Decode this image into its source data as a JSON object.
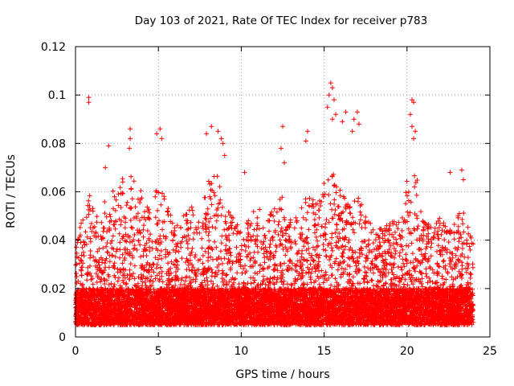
{
  "chart_data": {
    "type": "scatter",
    "title": "Day 103 of 2021, Rate Of TEC Index for receiver p783",
    "xlabel": "GPS time / hours",
    "ylabel": "ROTI / TECUs",
    "xlim": [
      0,
      25
    ],
    "ylim": [
      0,
      0.12
    ],
    "x_ticks": [
      0,
      5,
      10,
      15,
      20,
      25
    ],
    "x_tick_labels": [
      "0",
      "5",
      "10",
      "15",
      "20",
      "25"
    ],
    "y_ticks": [
      0,
      0.02,
      0.04,
      0.06,
      0.08,
      0.1,
      0.12
    ],
    "y_tick_labels": [
      "0",
      "0.02",
      "0.04",
      "0.06",
      "0.08",
      "0.1",
      "0.12"
    ],
    "grid": true,
    "marker": "plus",
    "color": "#ff0000",
    "density": {
      "x_start": 0,
      "x_end": 24,
      "baseline_min": 0.005,
      "baseline_max": 0.02,
      "samples_per_hour": 420,
      "envelope_hours": [
        0,
        0.5,
        1,
        1.5,
        2,
        2.5,
        3,
        3.5,
        4,
        4.5,
        5,
        5.5,
        6,
        6.5,
        7,
        7.5,
        8,
        8.5,
        9,
        9.5,
        10,
        10.5,
        11,
        11.5,
        12,
        12.5,
        13,
        13.5,
        14,
        14.5,
        15,
        15.5,
        16,
        16.5,
        17,
        17.5,
        18,
        18.5,
        19,
        19.5,
        20,
        20.5,
        21,
        21.5,
        22,
        22.5,
        23,
        23.5,
        24
      ],
      "envelope_values": [
        0.035,
        0.055,
        0.06,
        0.05,
        0.065,
        0.06,
        0.07,
        0.065,
        0.06,
        0.055,
        0.065,
        0.055,
        0.045,
        0.05,
        0.055,
        0.05,
        0.065,
        0.07,
        0.055,
        0.05,
        0.045,
        0.05,
        0.055,
        0.05,
        0.055,
        0.06,
        0.05,
        0.055,
        0.06,
        0.055,
        0.065,
        0.07,
        0.06,
        0.055,
        0.06,
        0.05,
        0.045,
        0.045,
        0.05,
        0.055,
        0.065,
        0.07,
        0.05,
        0.045,
        0.05,
        0.045,
        0.05,
        0.055,
        0.04
      ]
    },
    "outliers": [
      {
        "x": 0.8,
        "y": 0.099
      },
      {
        "x": 0.8,
        "y": 0.097
      },
      {
        "x": 3.3,
        "y": 0.086
      },
      {
        "x": 3.3,
        "y": 0.082
      },
      {
        "x": 3.25,
        "y": 0.078
      },
      {
        "x": 4.9,
        "y": 0.084
      },
      {
        "x": 5.1,
        "y": 0.086
      },
      {
        "x": 5.2,
        "y": 0.082
      },
      {
        "x": 7.9,
        "y": 0.084
      },
      {
        "x": 8.2,
        "y": 0.087
      },
      {
        "x": 8.6,
        "y": 0.085
      },
      {
        "x": 8.8,
        "y": 0.082
      },
      {
        "x": 8.9,
        "y": 0.08
      },
      {
        "x": 12.5,
        "y": 0.087
      },
      {
        "x": 12.4,
        "y": 0.078
      },
      {
        "x": 12.6,
        "y": 0.072
      },
      {
        "x": 14.0,
        "y": 0.085
      },
      {
        "x": 13.9,
        "y": 0.081
      },
      {
        "x": 15.4,
        "y": 0.105
      },
      {
        "x": 15.5,
        "y": 0.103
      },
      {
        "x": 15.3,
        "y": 0.1
      },
      {
        "x": 15.6,
        "y": 0.098
      },
      {
        "x": 15.2,
        "y": 0.095
      },
      {
        "x": 15.7,
        "y": 0.092
      },
      {
        "x": 15.5,
        "y": 0.09
      },
      {
        "x": 16.3,
        "y": 0.093
      },
      {
        "x": 16.1,
        "y": 0.089
      },
      {
        "x": 16.8,
        "y": 0.09
      },
      {
        "x": 16.7,
        "y": 0.085
      },
      {
        "x": 17.0,
        "y": 0.093
      },
      {
        "x": 17.1,
        "y": 0.088
      },
      {
        "x": 20.3,
        "y": 0.098
      },
      {
        "x": 20.4,
        "y": 0.097
      },
      {
        "x": 20.2,
        "y": 0.092
      },
      {
        "x": 20.3,
        "y": 0.087
      },
      {
        "x": 20.5,
        "y": 0.085
      },
      {
        "x": 20.4,
        "y": 0.082
      },
      {
        "x": 22.6,
        "y": 0.068
      },
      {
        "x": 23.3,
        "y": 0.069
      },
      {
        "x": 23.4,
        "y": 0.065
      },
      {
        "x": 2.0,
        "y": 0.079
      },
      {
        "x": 1.8,
        "y": 0.07
      },
      {
        "x": 9.0,
        "y": 0.075
      },
      {
        "x": 10.2,
        "y": 0.068
      }
    ]
  }
}
